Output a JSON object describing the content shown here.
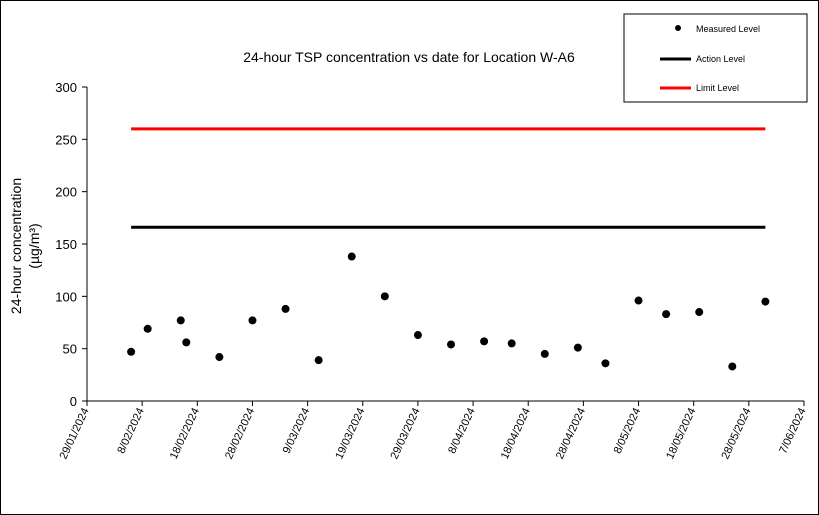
{
  "chart_data": {
    "type": "scatter",
    "title": "24-hour TSP concentration vs date for Location W-A6",
    "ylabel": "24-hour concentration",
    "ylabel_unit": "(µg/m³)",
    "ylim": [
      0,
      300
    ],
    "yticks": [
      0,
      50,
      100,
      150,
      200,
      250,
      300
    ],
    "xlim": [
      "2024-01-29",
      "2024-06-07"
    ],
    "xticks": [
      "29/01/2024",
      "8/02/2024",
      "18/02/2024",
      "28/02/2024",
      "9/03/2024",
      "19/03/2024",
      "29/03/2024",
      "8/04/2024",
      "18/04/2024",
      "28/04/2024",
      "8/05/2024",
      "18/05/2024",
      "28/05/2024",
      "7/06/2024"
    ],
    "legend": {
      "placement": "top-right",
      "entries": [
        "Measured Level",
        "Action Level",
        "Limit Level"
      ]
    },
    "series": [
      {
        "name": "Measured Level",
        "style": "marker",
        "color": "#000000",
        "points": [
          {
            "date": "2024-02-06",
            "value": 47
          },
          {
            "date": "2024-02-09",
            "value": 69
          },
          {
            "date": "2024-02-15",
            "value": 77
          },
          {
            "date": "2024-02-16",
            "value": 56
          },
          {
            "date": "2024-02-22",
            "value": 42
          },
          {
            "date": "2024-02-28",
            "value": 77
          },
          {
            "date": "2024-03-05",
            "value": 88
          },
          {
            "date": "2024-03-11",
            "value": 39
          },
          {
            "date": "2024-03-17",
            "value": 138
          },
          {
            "date": "2024-03-23",
            "value": 100
          },
          {
            "date": "2024-03-29",
            "value": 63
          },
          {
            "date": "2024-04-04",
            "value": 54
          },
          {
            "date": "2024-04-10",
            "value": 57
          },
          {
            "date": "2024-04-15",
            "value": 55
          },
          {
            "date": "2024-04-21",
            "value": 45
          },
          {
            "date": "2024-04-27",
            "value": 51
          },
          {
            "date": "2024-05-02",
            "value": 36
          },
          {
            "date": "2024-05-08",
            "value": 96
          },
          {
            "date": "2024-05-13",
            "value": 83
          },
          {
            "date": "2024-05-19",
            "value": 85
          },
          {
            "date": "2024-05-25",
            "value": 33
          },
          {
            "date": "2024-05-31",
            "value": 95
          }
        ]
      },
      {
        "name": "Action Level",
        "style": "line",
        "color": "#000000",
        "points": [
          {
            "date": "2024-02-06",
            "value": 166
          },
          {
            "date": "2024-05-31",
            "value": 166
          }
        ]
      },
      {
        "name": "Limit Level",
        "style": "line",
        "color": "#ff0000",
        "points": [
          {
            "date": "2024-02-06",
            "value": 260
          },
          {
            "date": "2024-05-31",
            "value": 260
          }
        ]
      }
    ]
  }
}
